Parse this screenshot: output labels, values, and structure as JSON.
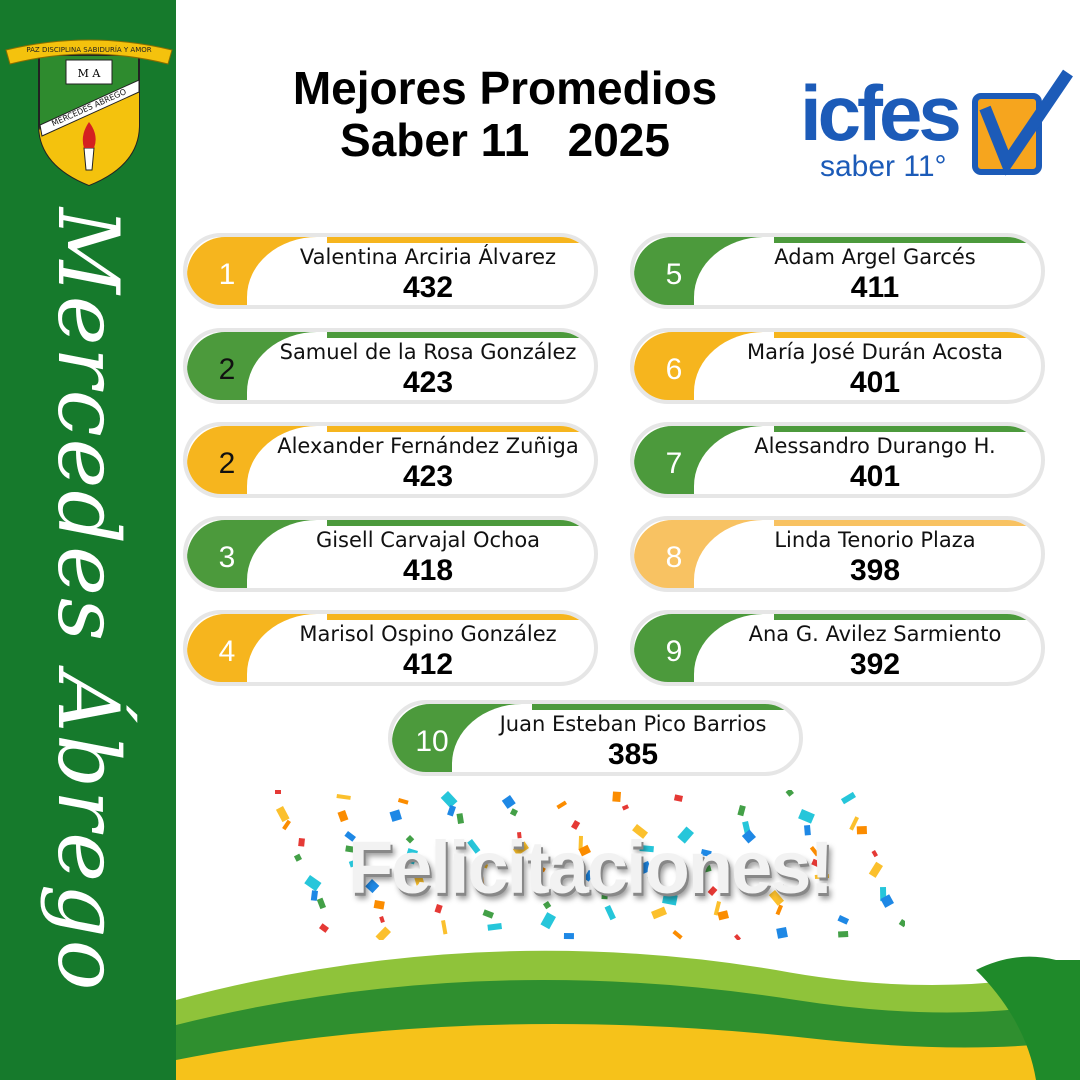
{
  "sidebar": {
    "vertical_text": "Mercedes Ábrego",
    "crest": {
      "motto": "PAZ DISCIPLINA SABIDURÍA Y AMOR",
      "initials": "M A",
      "banner": "MERCEDES ABREGO"
    },
    "color": "#167a2c"
  },
  "header": {
    "title_line1": "Mejores Promedios",
    "title_line2": "Saber 11   2025"
  },
  "logo": {
    "brand": "icfes",
    "sub": "saber 11°"
  },
  "colors": {
    "green": "#4c9a3c",
    "yellow": "#f6b51e",
    "light_orange": "#f8c262"
  },
  "students": [
    {
      "rank": "1",
      "name": "Valentina Arciria Álvarez",
      "score": "432",
      "color": "yellow",
      "rank_color": "#ffffff"
    },
    {
      "rank": "2",
      "name": "Samuel de la Rosa González",
      "score": "423",
      "color": "green",
      "rank_color": "#111111"
    },
    {
      "rank": "2",
      "name": "Alexander Fernández Zuñiga",
      "score": "423",
      "color": "yellow",
      "rank_color": "#111111"
    },
    {
      "rank": "3",
      "name": "Gisell Carvajal Ochoa",
      "score": "418",
      "color": "green",
      "rank_color": "#ffffff"
    },
    {
      "rank": "4",
      "name": "Marisol Ospino González",
      "score": "412",
      "color": "yellow",
      "rank_color": "#ffffff"
    },
    {
      "rank": "5",
      "name": "Adam Argel Garcés",
      "score": "411",
      "color": "green",
      "rank_color": "#ffffff"
    },
    {
      "rank": "6",
      "name": "María José Durán Acosta",
      "score": "401",
      "color": "yellow",
      "rank_color": "#ffffff"
    },
    {
      "rank": "7",
      "name": "Alessandro Durango H.",
      "score": "401",
      "color": "green",
      "rank_color": "#ffffff"
    },
    {
      "rank": "8",
      "name": "Linda Tenorio Plaza",
      "score": "398",
      "color": "light_orange",
      "rank_color": "#ffffff"
    },
    {
      "rank": "9",
      "name": "Ana G. Avilez Sarmiento",
      "score": "392",
      "color": "green",
      "rank_color": "#ffffff"
    },
    {
      "rank": "10",
      "name": "Juan Esteban Pico Barrios",
      "score": "385",
      "color": "green",
      "rank_color": "#ffffff"
    }
  ],
  "footer": {
    "congrats": "Felicitaciones!"
  }
}
